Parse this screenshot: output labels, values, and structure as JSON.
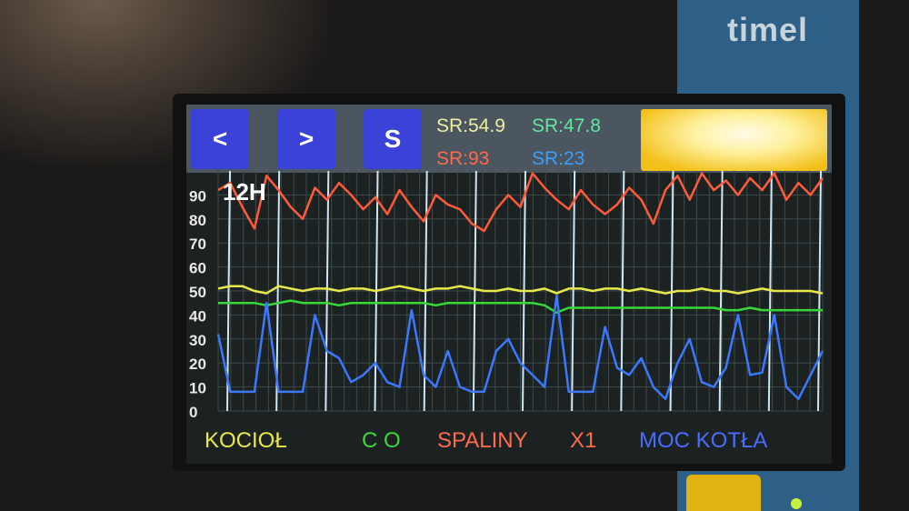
{
  "device": {
    "brand": "timel"
  },
  "header": {
    "prev_label": "<",
    "next_label": ">",
    "s_label": "S",
    "sr_kociol": "SR:54.9",
    "sr_co": "SR:47.8",
    "sr_spaliny": "SR:93",
    "sr_moc": "SR:23"
  },
  "chart_data": {
    "type": "line",
    "period_label": "12H",
    "ylim": [
      0,
      100
    ],
    "yticks": [
      "0",
      "10",
      "20",
      "30",
      "40",
      "50",
      "60",
      "70",
      "80",
      "90"
    ],
    "grid": true,
    "legend_position": "bottom",
    "series": [
      {
        "name": "KOCIOŁ",
        "color": "#e8e84a",
        "values": [
          51,
          52,
          52,
          50,
          49,
          52,
          51,
          50,
          51,
          51,
          50,
          51,
          51,
          50,
          51,
          52,
          51,
          50,
          51,
          51,
          52,
          51,
          50,
          50,
          51,
          50,
          50,
          51,
          49,
          51,
          51,
          50,
          51,
          51,
          50,
          51,
          50,
          49,
          50,
          50,
          51,
          50,
          50,
          49,
          50,
          51,
          50,
          50,
          50,
          50,
          49
        ]
      },
      {
        "name": "C O",
        "color": "#38d838",
        "values": [
          45,
          45,
          45,
          45,
          44,
          45,
          46,
          45,
          45,
          45,
          44,
          45,
          45,
          45,
          45,
          45,
          45,
          45,
          44,
          45,
          45,
          45,
          45,
          45,
          45,
          45,
          45,
          44,
          41,
          43,
          43,
          43,
          43,
          43,
          43,
          43,
          43,
          43,
          43,
          43,
          43,
          43,
          42,
          42,
          43,
          42,
          42,
          42,
          42,
          42,
          42
        ]
      },
      {
        "name": "SPALINY",
        "color": "#ff5a3a",
        "values": [
          92,
          95,
          85,
          76,
          98,
          92,
          85,
          80,
          93,
          88,
          95,
          90,
          84,
          89,
          82,
          92,
          85,
          79,
          90,
          86,
          84,
          78,
          75,
          84,
          90,
          85,
          99,
          93,
          88,
          84,
          92,
          86,
          82,
          86,
          93,
          88,
          78,
          92,
          98,
          88,
          99,
          92,
          96,
          90,
          97,
          92,
          99,
          88,
          95,
          90,
          97
        ]
      },
      {
        "name": "MOC KOTŁA",
        "color": "#3a78ff",
        "values": [
          32,
          8,
          8,
          8,
          45,
          8,
          8,
          8,
          40,
          25,
          22,
          12,
          15,
          20,
          12,
          10,
          42,
          15,
          10,
          25,
          10,
          8,
          8,
          25,
          30,
          20,
          15,
          10,
          48,
          8,
          8,
          8,
          35,
          18,
          15,
          22,
          10,
          5,
          20,
          30,
          12,
          10,
          18,
          40,
          15,
          16,
          40,
          10,
          5,
          15,
          25
        ]
      }
    ],
    "extra_label": "X1"
  }
}
